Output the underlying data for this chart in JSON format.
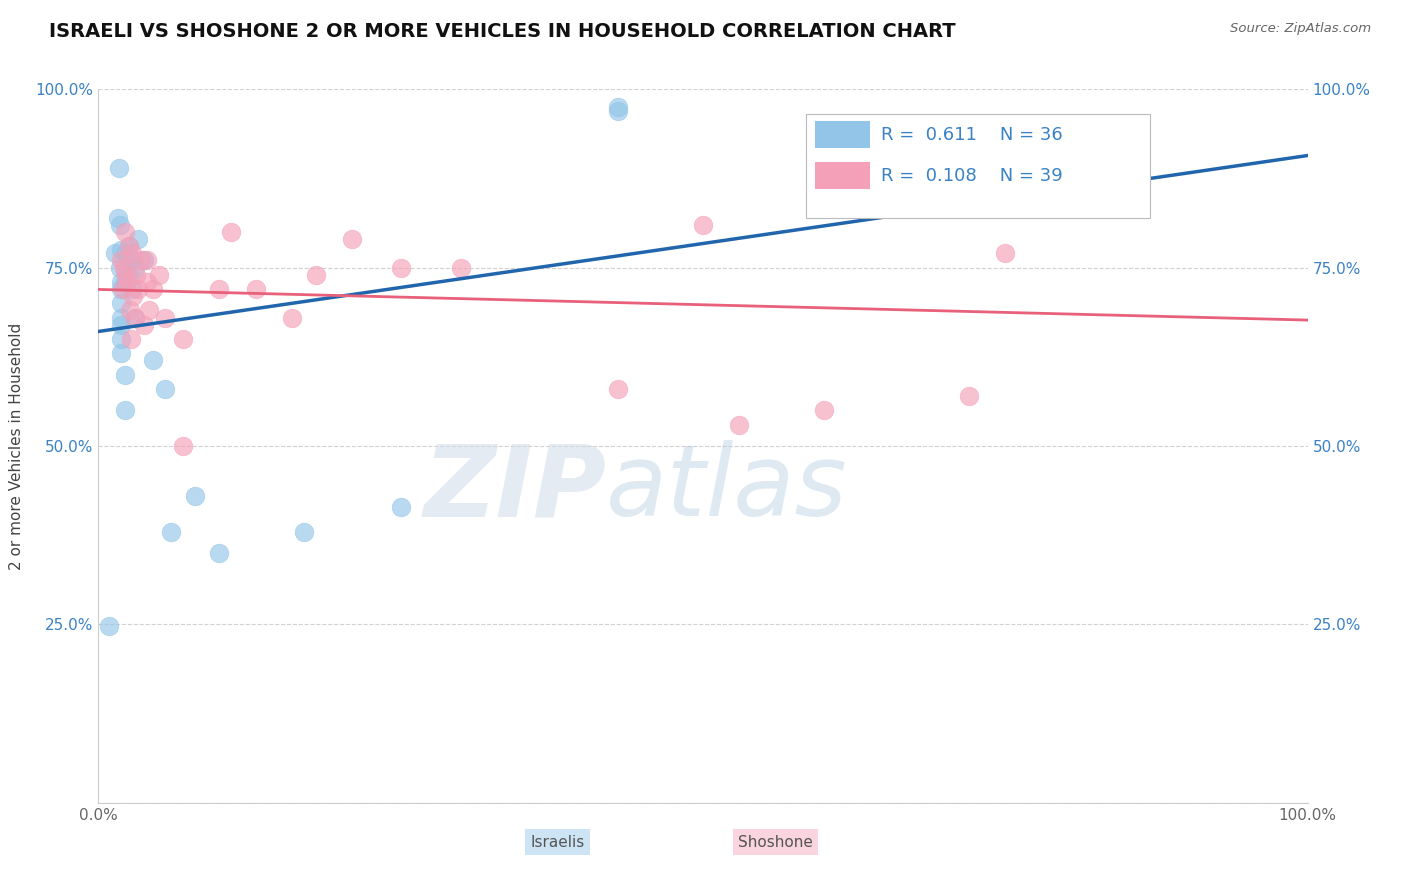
{
  "title": "ISRAELI VS SHOSHONE 2 OR MORE VEHICLES IN HOUSEHOLD CORRELATION CHART",
  "source": "Source: ZipAtlas.com",
  "ylabel": "2 or more Vehicles in Household",
  "xlim": [
    0.0,
    1.0
  ],
  "ylim": [
    0.0,
    1.0
  ],
  "israeli_R": 0.611,
  "israeli_N": 36,
  "shoshone_R": 0.108,
  "shoshone_N": 39,
  "israeli_color": "#92C5E8",
  "shoshone_color": "#F4A0B8",
  "israeli_line_color": "#2166AC",
  "shoshone_line_color": "#E8607A",
  "legend_text_color": "#3B82C4",
  "watermark_zip": "ZIP",
  "watermark_atlas": "atlas",
  "israeli_points": [
    [
      0.014,
      0.77
    ],
    [
      0.016,
      0.82
    ],
    [
      0.017,
      0.89
    ],
    [
      0.018,
      0.75
    ],
    [
      0.018,
      0.81
    ],
    [
      0.019,
      0.775
    ],
    [
      0.019,
      0.73
    ],
    [
      0.019,
      0.72
    ],
    [
      0.019,
      0.7
    ],
    [
      0.019,
      0.68
    ],
    [
      0.019,
      0.67
    ],
    [
      0.019,
      0.65
    ],
    [
      0.019,
      0.63
    ],
    [
      0.022,
      0.77
    ],
    [
      0.022,
      0.75
    ],
    [
      0.022,
      0.73
    ],
    [
      0.022,
      0.6
    ],
    [
      0.022,
      0.55
    ],
    [
      0.025,
      0.78
    ],
    [
      0.025,
      0.74
    ],
    [
      0.028,
      0.76
    ],
    [
      0.028,
      0.72
    ],
    [
      0.03,
      0.75
    ],
    [
      0.03,
      0.68
    ],
    [
      0.033,
      0.79
    ],
    [
      0.038,
      0.76
    ],
    [
      0.045,
      0.62
    ],
    [
      0.055,
      0.58
    ],
    [
      0.06,
      0.38
    ],
    [
      0.08,
      0.43
    ],
    [
      0.009,
      0.248
    ],
    [
      0.25,
      0.415
    ],
    [
      0.43,
      0.97
    ],
    [
      0.43,
      0.975
    ],
    [
      0.17,
      0.38
    ],
    [
      0.1,
      0.35
    ]
  ],
  "shoshone_points": [
    [
      0.019,
      0.76
    ],
    [
      0.02,
      0.72
    ],
    [
      0.021,
      0.75
    ],
    [
      0.022,
      0.8
    ],
    [
      0.023,
      0.74
    ],
    [
      0.024,
      0.73
    ],
    [
      0.025,
      0.78
    ],
    [
      0.026,
      0.69
    ],
    [
      0.027,
      0.65
    ],
    [
      0.028,
      0.77
    ],
    [
      0.029,
      0.71
    ],
    [
      0.03,
      0.68
    ],
    [
      0.031,
      0.74
    ],
    [
      0.033,
      0.72
    ],
    [
      0.035,
      0.76
    ],
    [
      0.038,
      0.67
    ],
    [
      0.04,
      0.76
    ],
    [
      0.04,
      0.73
    ],
    [
      0.042,
      0.69
    ],
    [
      0.045,
      0.72
    ],
    [
      0.05,
      0.74
    ],
    [
      0.055,
      0.68
    ],
    [
      0.07,
      0.65
    ],
    [
      0.1,
      0.72
    ],
    [
      0.11,
      0.8
    ],
    [
      0.13,
      0.72
    ],
    [
      0.16,
      0.68
    ],
    [
      0.18,
      0.74
    ],
    [
      0.21,
      0.79
    ],
    [
      0.25,
      0.75
    ],
    [
      0.43,
      0.58
    ],
    [
      0.53,
      0.53
    ],
    [
      0.6,
      0.55
    ],
    [
      0.72,
      0.57
    ],
    [
      0.75,
      0.77
    ],
    [
      0.85,
      0.87
    ],
    [
      0.5,
      0.81
    ],
    [
      0.3,
      0.75
    ],
    [
      0.07,
      0.5
    ]
  ]
}
